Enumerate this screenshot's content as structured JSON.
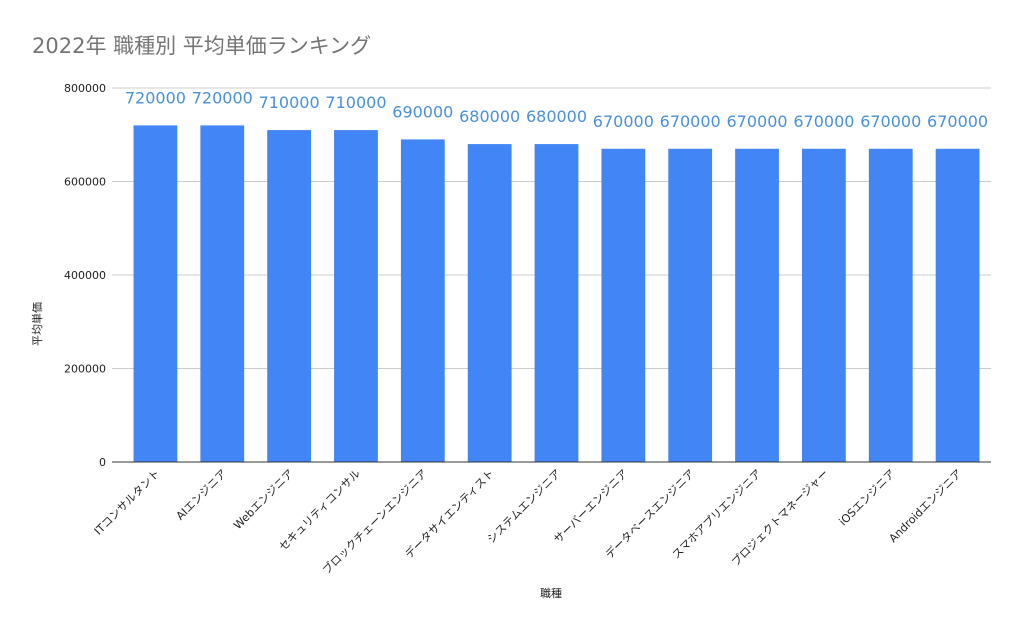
{
  "chart_data": {
    "type": "bar",
    "title": "2022年 職種別 平均単価ランキング",
    "xlabel": "職種",
    "ylabel": "平均単価",
    "ylim": [
      0,
      800000
    ],
    "yticks": [
      0,
      200000,
      400000,
      600000,
      800000
    ],
    "grid": true,
    "legend": "none",
    "bar_color": "#4285f4",
    "label_color": "#4a90d9",
    "categories": [
      "ITコンサルタント",
      "AIエンジニア",
      "Webエンジニア",
      "セキュリティコンサル",
      "ブロックチェーンエンジニア",
      "データサイエンティスト",
      "システムエンジニア",
      "サーバーエンジニア",
      "データベースエンジニア",
      "スマホアプリエンジニア",
      "プロジェクトマネージャー",
      "iOSエンジニア",
      "Androidエンジニア"
    ],
    "values": [
      720000,
      720000,
      710000,
      710000,
      690000,
      680000,
      680000,
      670000,
      670000,
      670000,
      670000,
      670000,
      670000
    ]
  }
}
